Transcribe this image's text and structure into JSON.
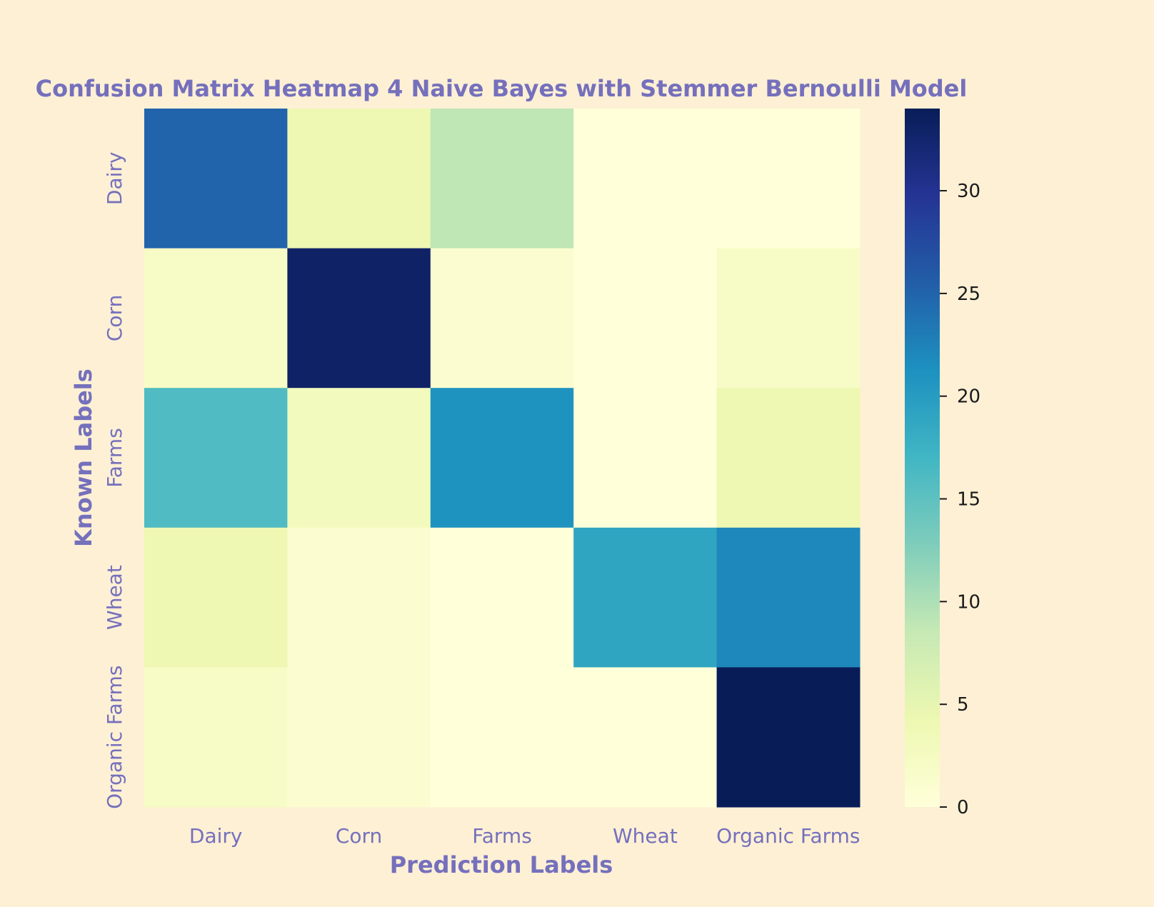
{
  "chart_data": {
    "type": "heatmap",
    "title": "Confusion Matrix Heatmap 4 Naive Bayes with Stemmer Bernoulli Model",
    "xlabel": "Prediction Labels",
    "ylabel": "Known Labels",
    "x_categories": [
      "Dairy",
      "Corn",
      "Farms",
      "Wheat",
      "Organic Farms"
    ],
    "y_categories": [
      "Dairy",
      "Corn",
      "Farms",
      "Wheat",
      "Organic Farms"
    ],
    "matrix": [
      [
        25,
        4,
        9,
        0,
        0
      ],
      [
        2,
        33,
        1,
        0,
        2
      ],
      [
        16,
        3,
        21,
        0,
        4
      ],
      [
        4,
        1,
        0,
        19,
        22
      ],
      [
        2,
        1,
        0,
        0,
        34
      ]
    ],
    "colormap": "YlGnBu",
    "colorbar": {
      "min": 0,
      "max": 34,
      "ticks": [
        0,
        5,
        10,
        15,
        20,
        25,
        30
      ]
    },
    "colors": {
      "background": "#fdf0d5",
      "label_text": "#7570bc",
      "tick_text": "#1a1a1a"
    }
  }
}
